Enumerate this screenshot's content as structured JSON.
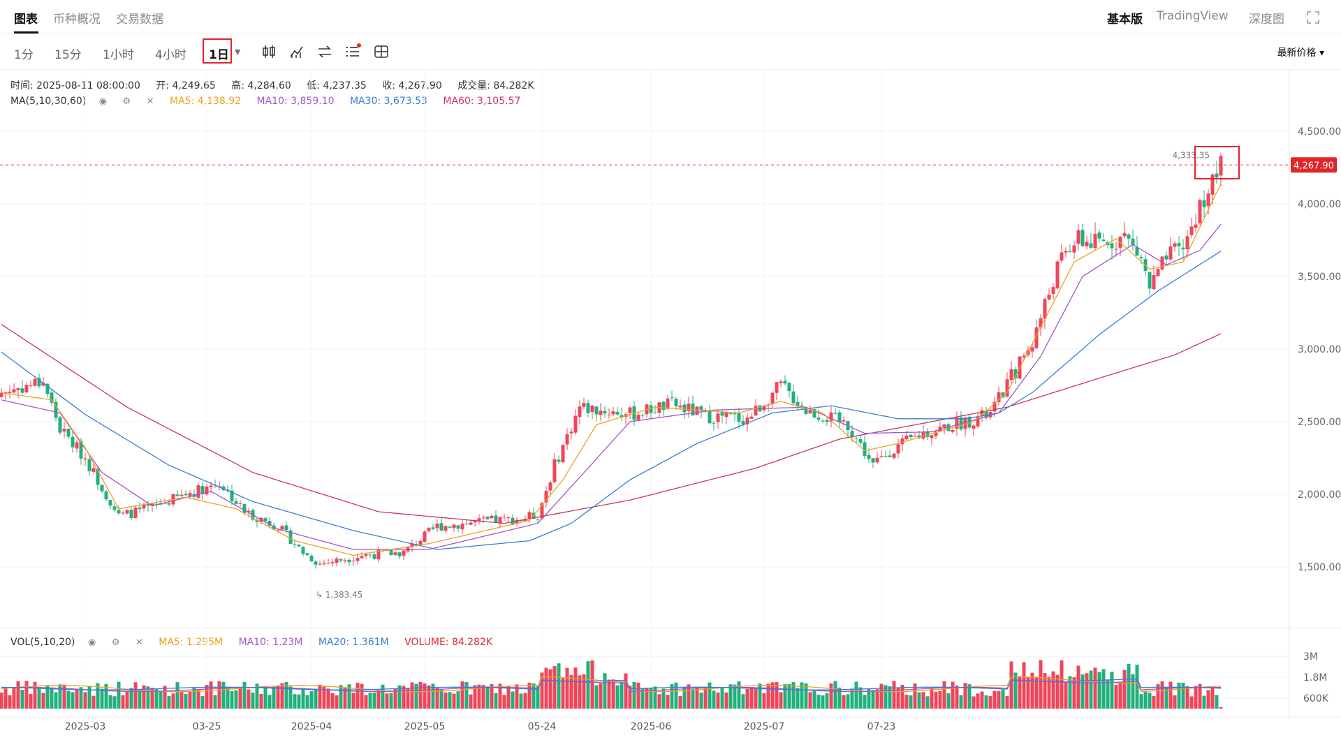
{
  "tabs": [
    {
      "label": "图表",
      "active": true
    },
    {
      "label": "币种概况"
    },
    {
      "label": "交易数据"
    }
  ],
  "right_links": [
    {
      "label": "基本版",
      "active": true
    },
    {
      "label": "TradingView"
    },
    {
      "label": "深度图"
    }
  ],
  "intervals": [
    "1分",
    "15分",
    "1小时",
    "4小时",
    "1日"
  ],
  "selected_interval": "1日",
  "price_type_label": "最新价格",
  "icons": [
    "candlestick-icon",
    "indicator-icon",
    "swap-icon",
    "list-settings-icon",
    "layout-icon",
    "fullscreen-icon"
  ],
  "ohlc": {
    "time": "时间: 2025-08-11 08:00:00",
    "open": "开: 4,249.65",
    "high": "高: 4,284.60",
    "low": "低: 4,237.35",
    "close": "收: 4,267.90",
    "volume": "成交量: 84.282K"
  },
  "ma_legend": {
    "label": "MA(5,10,30,60)",
    "ma5": "MA5: 4,138.92",
    "ma10": "MA10: 3,859.10",
    "ma30": "MA30: 3,673.53",
    "ma60": "MA60: 3,105.57"
  },
  "vol_legend": {
    "label": "VOL(5,10,20)",
    "ma5": "MA5: 1.295M",
    "ma10": "MA10: 1.23M",
    "ma20": "MA20: 1.361M",
    "volume": "VOLUME: 84.282K"
  },
  "colors": {
    "up": "#f0455a",
    "down": "#22b07d",
    "ma5": "#f0a020",
    "ma10": "#a455c8",
    "ma30": "#3a7fd5",
    "ma60": "#c8385a",
    "highlight": "#e0262b"
  },
  "chart_data": {
    "type": "candlestick",
    "price_axis": {
      "ticks": [
        "4,500.00",
        "4,000.00",
        "3,500.00",
        "3,000.00",
        "2,500.00",
        "2,000.00",
        "1,500.00"
      ],
      "range": [
        1000,
        4900
      ]
    },
    "volume_axis": {
      "ticks": [
        "3M",
        "1.8M",
        "600K"
      ],
      "range": [
        0,
        3600000
      ]
    },
    "time_axis": {
      "ticks": [
        "2025-03",
        "03-25",
        "2025-04",
        "2025-05",
        "05-24",
        "2025-06",
        "2025-07",
        "07-23"
      ]
    },
    "current_price": "4,267.90",
    "max_marker": "4,333.35",
    "min_marker": "1,383.45",
    "series": [
      {
        "name": "price",
        "anchors": [
          [
            0,
            2700
          ],
          [
            10,
            2780
          ],
          [
            14,
            2450
          ],
          [
            20,
            2250
          ],
          [
            24,
            2050
          ],
          [
            28,
            1850
          ],
          [
            35,
            1900
          ],
          [
            44,
            2000
          ],
          [
            52,
            2080
          ],
          [
            58,
            1880
          ],
          [
            66,
            1780
          ],
          [
            72,
            1600
          ],
          [
            76,
            1520
          ],
          [
            86,
            1580
          ],
          [
            96,
            1600
          ],
          [
            104,
            1780
          ],
          [
            118,
            1820
          ],
          [
            124,
            1830
          ],
          [
            128,
            1860
          ],
          [
            132,
            2200
          ],
          [
            138,
            2600
          ],
          [
            150,
            2550
          ],
          [
            160,
            2620
          ],
          [
            168,
            2540
          ],
          [
            178,
            2520
          ],
          [
            186,
            2750
          ],
          [
            192,
            2580
          ],
          [
            202,
            2480
          ],
          [
            208,
            2200
          ],
          [
            212,
            2300
          ],
          [
            220,
            2420
          ],
          [
            236,
            2550
          ],
          [
            240,
            2760
          ],
          [
            246,
            3050
          ],
          [
            252,
            3560
          ],
          [
            256,
            3750
          ],
          [
            262,
            3720
          ],
          [
            268,
            3780
          ],
          [
            272,
            3620
          ],
          [
            274,
            3420
          ],
          [
            278,
            3620
          ],
          [
            282,
            3700
          ],
          [
            287,
            4050
          ],
          [
            291,
            4260
          ]
        ]
      },
      {
        "name": "MA5",
        "anchors": [
          [
            0,
            2700
          ],
          [
            12,
            2650
          ],
          [
            20,
            2320
          ],
          [
            28,
            1900
          ],
          [
            44,
            1980
          ],
          [
            56,
            1900
          ],
          [
            70,
            1680
          ],
          [
            84,
            1580
          ],
          [
            102,
            1660
          ],
          [
            126,
            1820
          ],
          [
            134,
            2100
          ],
          [
            142,
            2480
          ],
          [
            156,
            2600
          ],
          [
            176,
            2560
          ],
          [
            186,
            2640
          ],
          [
            196,
            2560
          ],
          [
            206,
            2300
          ],
          [
            214,
            2350
          ],
          [
            232,
            2500
          ],
          [
            240,
            2700
          ],
          [
            248,
            3150
          ],
          [
            256,
            3600
          ],
          [
            266,
            3760
          ],
          [
            274,
            3550
          ],
          [
            282,
            3600
          ],
          [
            291,
            4139
          ]
        ]
      },
      {
        "name": "MA10",
        "anchors": [
          [
            0,
            2650
          ],
          [
            14,
            2560
          ],
          [
            24,
            2150
          ],
          [
            36,
            1920
          ],
          [
            50,
            2020
          ],
          [
            66,
            1760
          ],
          [
            84,
            1620
          ],
          [
            102,
            1620
          ],
          [
            128,
            1800
          ],
          [
            140,
            2180
          ],
          [
            150,
            2500
          ],
          [
            170,
            2580
          ],
          [
            192,
            2600
          ],
          [
            206,
            2420
          ],
          [
            222,
            2430
          ],
          [
            238,
            2560
          ],
          [
            248,
            2950
          ],
          [
            258,
            3500
          ],
          [
            270,
            3720
          ],
          [
            278,
            3580
          ],
          [
            286,
            3680
          ],
          [
            291,
            3859
          ]
        ]
      },
      {
        "name": "MA30",
        "anchors": [
          [
            0,
            2980
          ],
          [
            20,
            2550
          ],
          [
            40,
            2200
          ],
          [
            60,
            1950
          ],
          [
            84,
            1750
          ],
          [
            104,
            1620
          ],
          [
            126,
            1680
          ],
          [
            136,
            1800
          ],
          [
            150,
            2100
          ],
          [
            166,
            2350
          ],
          [
            184,
            2560
          ],
          [
            198,
            2610
          ],
          [
            214,
            2520
          ],
          [
            230,
            2520
          ],
          [
            238,
            2560
          ],
          [
            246,
            2700
          ],
          [
            262,
            3100
          ],
          [
            276,
            3400
          ],
          [
            291,
            3674
          ]
        ]
      },
      {
        "name": "MA60",
        "anchors": [
          [
            0,
            3170
          ],
          [
            30,
            2600
          ],
          [
            60,
            2150
          ],
          [
            90,
            1880
          ],
          [
            120,
            1800
          ],
          [
            150,
            1960
          ],
          [
            180,
            2180
          ],
          [
            200,
            2380
          ],
          [
            222,
            2500
          ],
          [
            240,
            2600
          ],
          [
            262,
            2800
          ],
          [
            280,
            2960
          ],
          [
            291,
            3106
          ]
        ]
      }
    ]
  }
}
